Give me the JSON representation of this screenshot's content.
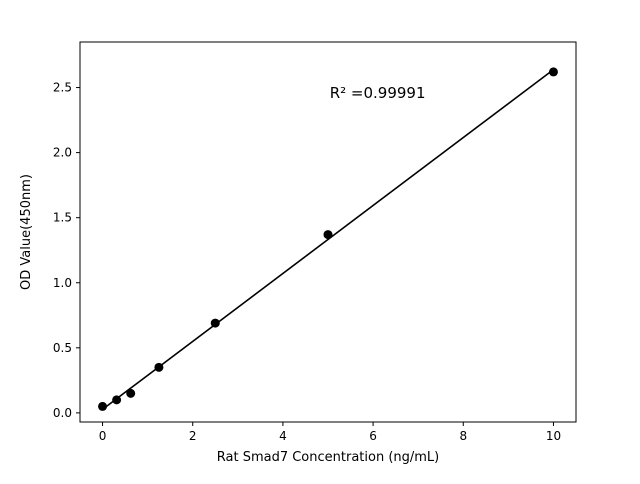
{
  "chart_data": {
    "type": "scatter",
    "title": "",
    "xlabel": "Rat Smad7 Concentration (ng/mL)",
    "ylabel": "OD Value(450nm)",
    "x": [
      0,
      0.3125,
      0.625,
      1.25,
      2.5,
      5,
      10
    ],
    "y": [
      0.05,
      0.1,
      0.15,
      0.35,
      0.69,
      1.37,
      2.62
    ],
    "fit_line": true,
    "xlim": [
      -0.5,
      10.5
    ],
    "ylim": [
      -0.07,
      2.85
    ],
    "xticks": {
      "values": [
        0,
        2,
        4,
        6,
        8,
        10
      ],
      "labels": [
        "0",
        "2",
        "4",
        "6",
        "8",
        "10"
      ]
    },
    "yticks": {
      "values": [
        0.0,
        0.5,
        1.0,
        1.5,
        2.0,
        2.5
      ],
      "labels": [
        "0.0",
        "0.5",
        "1.0",
        "1.5",
        "2.0",
        "2.5"
      ]
    },
    "annotation": {
      "text": "R² =0.99991",
      "x": 6.1,
      "y": 2.42
    },
    "marker_color": "#000000",
    "line_color": "#000000",
    "background_color": "#ffffff",
    "grid": false,
    "legend": "none"
  }
}
